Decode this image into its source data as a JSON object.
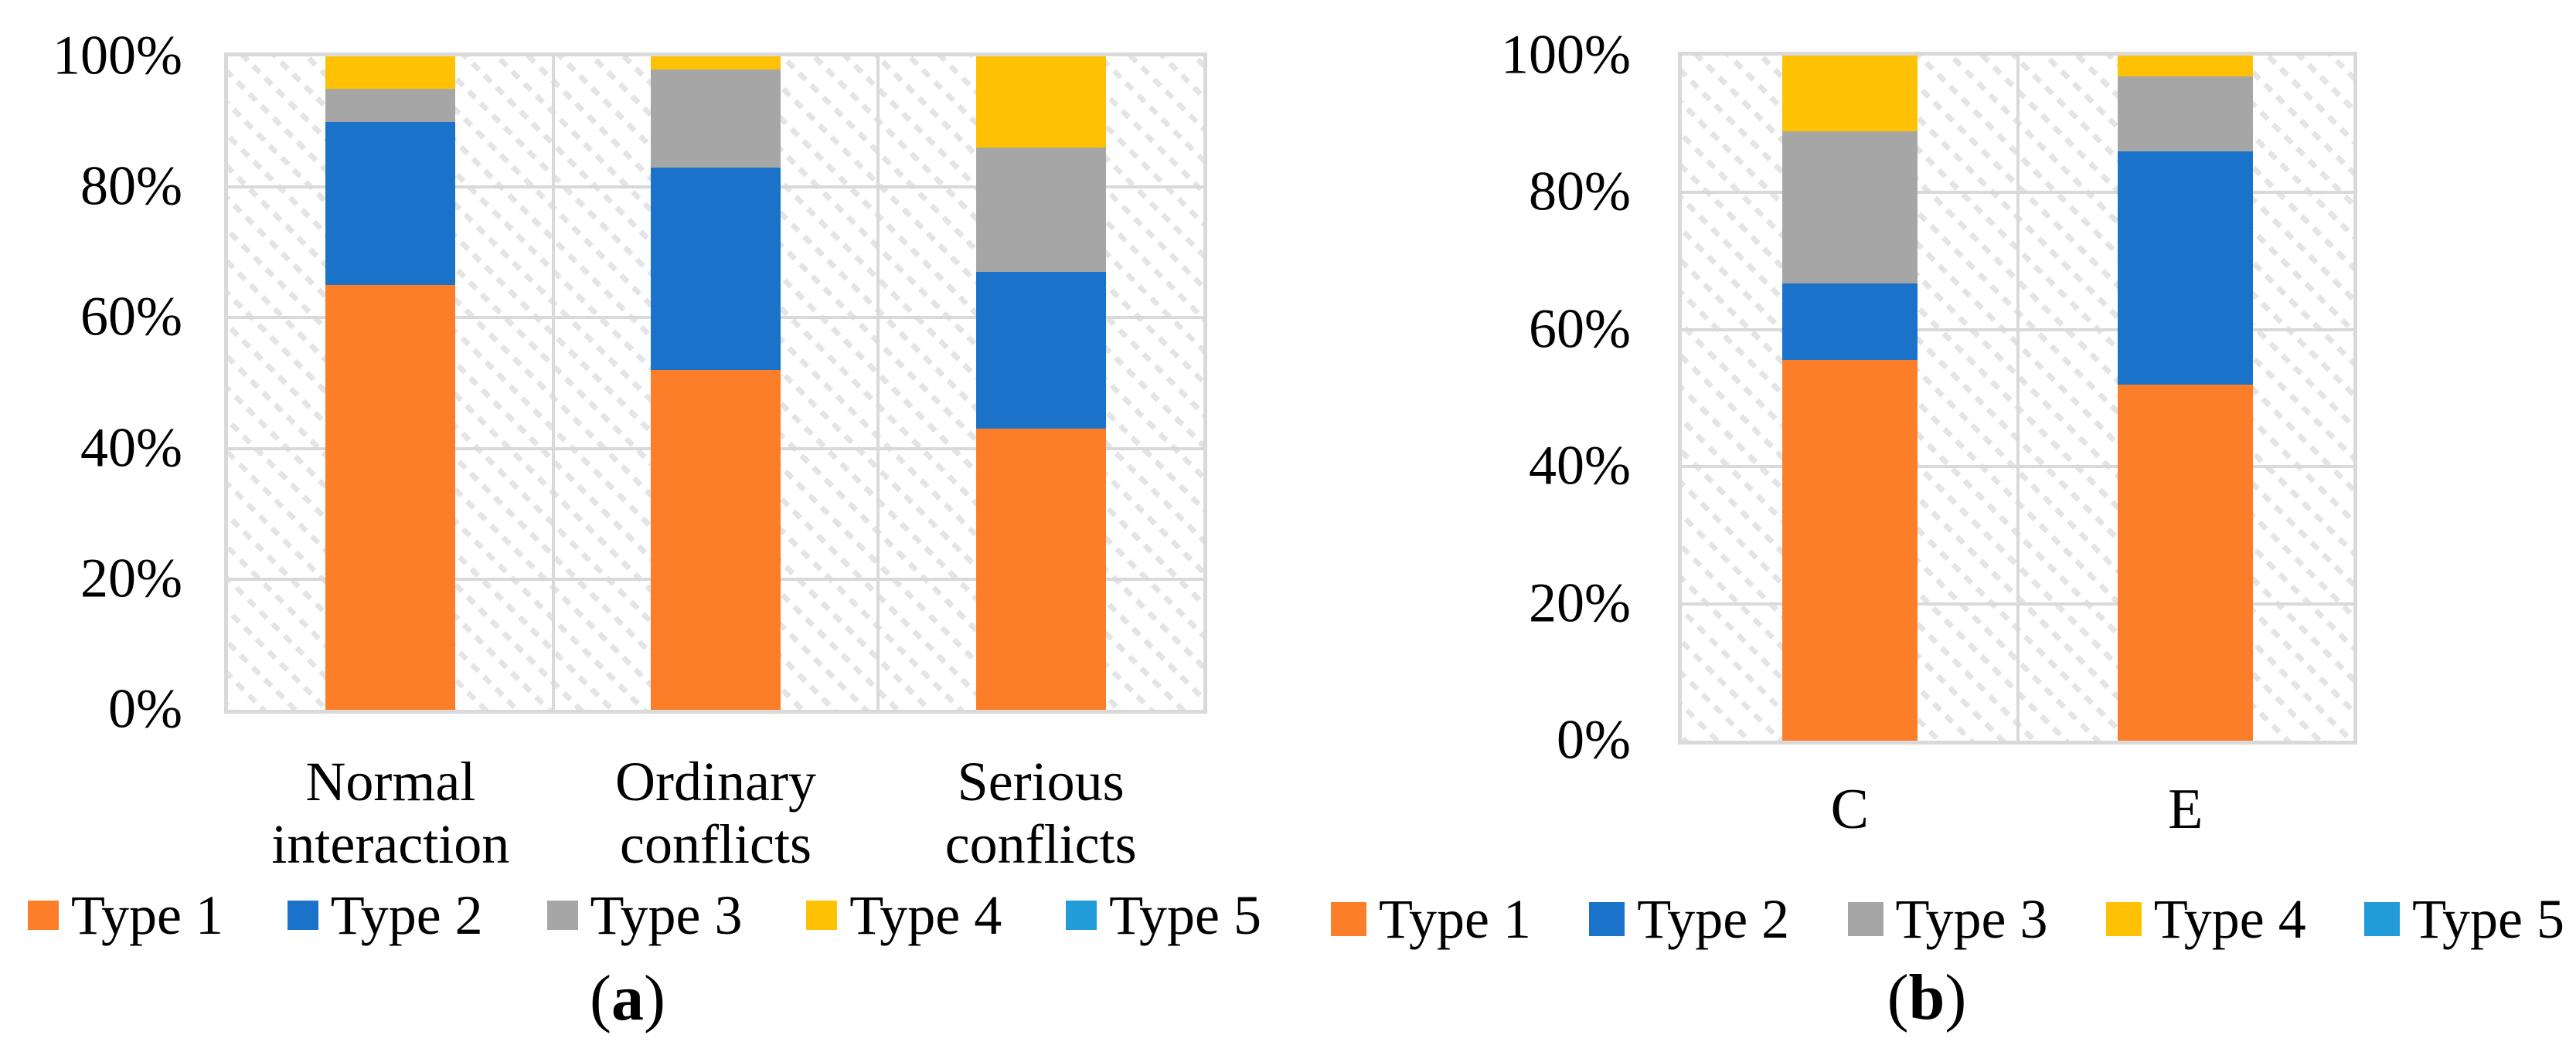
{
  "figure": {
    "captions": {
      "a": {
        "open": "(",
        "letter": "a",
        "close": ")"
      },
      "b": {
        "open": "(",
        "letter": "b",
        "close": ")"
      }
    },
    "legend": [
      {
        "label": "Type 1",
        "color": "#FD7E28"
      },
      {
        "label": "Type 2",
        "color": "#1A73C8"
      },
      {
        "label": "Type 3",
        "color": "#A6A6A6"
      },
      {
        "label": "Type 4",
        "color": "#FFC103"
      },
      {
        "label": "Type 5",
        "color": "#219CD8"
      }
    ],
    "colors": {
      "gridline": "#D9D9D9",
      "hatch": "#E4E4E4",
      "text": "#000000"
    }
  },
  "chart_data": [
    {
      "id": "a",
      "type": "bar",
      "stacked": true,
      "orientation": "vertical",
      "title": "(a)",
      "categories": [
        "Normal interaction",
        "Ordinary conflicts",
        "Serious conflicts"
      ],
      "category_lines": [
        [
          "Normal",
          "interaction"
        ],
        [
          "Ordinary",
          "conflicts"
        ],
        [
          "Serious",
          "conflicts"
        ]
      ],
      "series": [
        {
          "name": "Type 1",
          "color": "#FD7E28",
          "values": [
            65,
            52,
            43
          ]
        },
        {
          "name": "Type 2",
          "color": "#1A73C8",
          "values": [
            25,
            31,
            24
          ]
        },
        {
          "name": "Type 3",
          "color": "#A6A6A6",
          "values": [
            5,
            15,
            19
          ]
        },
        {
          "name": "Type 4",
          "color": "#FFC103",
          "values": [
            5,
            2,
            14
          ]
        },
        {
          "name": "Type 5",
          "color": "#219CD8",
          "values": [
            0,
            0,
            0
          ]
        }
      ],
      "y_ticks": [
        "100%",
        "80%",
        "60%",
        "40%",
        "20%",
        "0%"
      ],
      "ylim": [
        0,
        100
      ],
      "y_unit": "percent",
      "grid": true,
      "legend_position": "bottom"
    },
    {
      "id": "b",
      "type": "bar",
      "stacked": true,
      "orientation": "vertical",
      "title": "(b)",
      "categories": [
        "C",
        "E"
      ],
      "category_lines": [
        [
          "C"
        ],
        [
          "E"
        ]
      ],
      "series": [
        {
          "name": "Type 1",
          "color": "#FD7E28",
          "values": [
            55.6,
            52
          ]
        },
        {
          "name": "Type 2",
          "color": "#1A73C8",
          "values": [
            11.1,
            34
          ]
        },
        {
          "name": "Type 3",
          "color": "#A6A6A6",
          "values": [
            22.2,
            11
          ]
        },
        {
          "name": "Type 4",
          "color": "#FFC103",
          "values": [
            11.1,
            3
          ]
        },
        {
          "name": "Type 5",
          "color": "#219CD8",
          "values": [
            0,
            0
          ]
        }
      ],
      "y_ticks": [
        "100%",
        "80%",
        "60%",
        "40%",
        "20%",
        "0%"
      ],
      "ylim": [
        0,
        100
      ],
      "y_unit": "percent",
      "grid": true,
      "legend_position": "bottom"
    }
  ]
}
